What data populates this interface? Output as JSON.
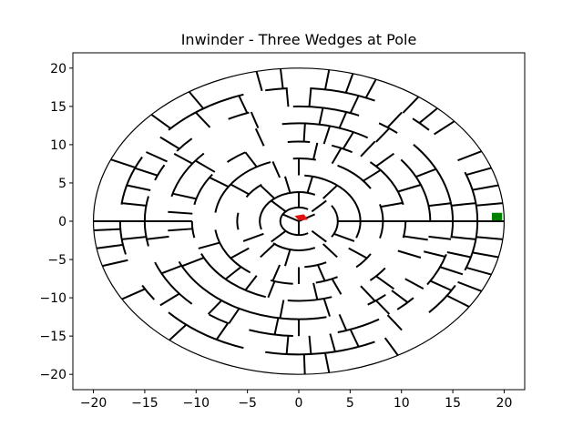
{
  "chart_data": {
    "type": "maze",
    "title": "Inwinder - Three Wedges at Pole",
    "xlabel": "",
    "ylabel": "",
    "xlim": [
      -22,
      22
    ],
    "ylim": [
      -22,
      22
    ],
    "xticks": [
      -20,
      -15,
      -10,
      -5,
      0,
      5,
      10,
      15,
      20
    ],
    "yticks": [
      -20,
      -15,
      -10,
      -5,
      0,
      5,
      10,
      15,
      20
    ],
    "xtick_labels": [
      "−20",
      "−15",
      "−10",
      "−5",
      "0",
      "5",
      "10",
      "15",
      "20"
    ],
    "ytick_labels": [
      "−20",
      "−15",
      "−10",
      "−5",
      "0",
      "5",
      "10",
      "15",
      "20"
    ],
    "grid": false,
    "outer_radius": 20,
    "rings": [
      1.8,
      3.8,
      6.0,
      8.2,
      10.4,
      12.8,
      15.0,
      17.4,
      20
    ],
    "wall_color": "#000000",
    "start_marker": {
      "x": 0.3,
      "y": 0.4,
      "color": "#e01010"
    },
    "end_marker": {
      "x": 19.3,
      "y": 0.6,
      "color": "#008000"
    }
  }
}
